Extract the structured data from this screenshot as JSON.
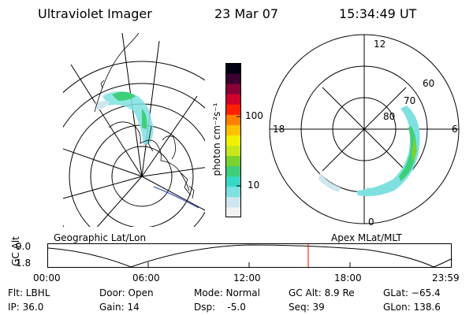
{
  "header": {
    "title": "Ultraviolet Imager",
    "date": "23 Mar 07",
    "time": "15:34:49 UT"
  },
  "colorbar": {
    "unit_label": "photon cm⁻²s⁻¹",
    "tick_100": "100",
    "tick_10": "10",
    "colors": [
      "#f2f2f2",
      "#cfe6ee",
      "#7fe0e0",
      "#38d8c8",
      "#3ecf7a",
      "#7ad22e",
      "#c6e81a",
      "#f0f000",
      "#ffc000",
      "#ff7f00",
      "#ff2000",
      "#d0002a",
      "#8a0036",
      "#3a0030",
      "#000010"
    ]
  },
  "geo_panel": {
    "label": "Geographic Lat/Lon"
  },
  "polar_panel": {
    "label": "Apex MLat/MLT",
    "mlt_12": "12",
    "mlt_6": "6",
    "mlt_18": "18",
    "mlt_0": "0",
    "lat_60": "60",
    "lat_70": "70",
    "lat_80": "80"
  },
  "altitude_plot": {
    "ylabel": "GC Alt",
    "ytick_high": "9.0",
    "ytick_low": "1.8",
    "xticks": [
      "00:00",
      "06:00",
      "12:00",
      "18:00",
      "23:59"
    ],
    "current_time_color": "#ff0000"
  },
  "info": {
    "filter": "Flt: LBHL",
    "ip": "IP: 36.0",
    "door": "Door: Open",
    "gain": "Gain: 14",
    "mode": "Mode: Normal",
    "dsp": "Dsp:    -5.0",
    "gc_alt": "GC Alt: 8.9 Re",
    "seq": "Seq: 39",
    "glat": "GLat: −65.4",
    "glon": "GLon: 138.6"
  }
}
